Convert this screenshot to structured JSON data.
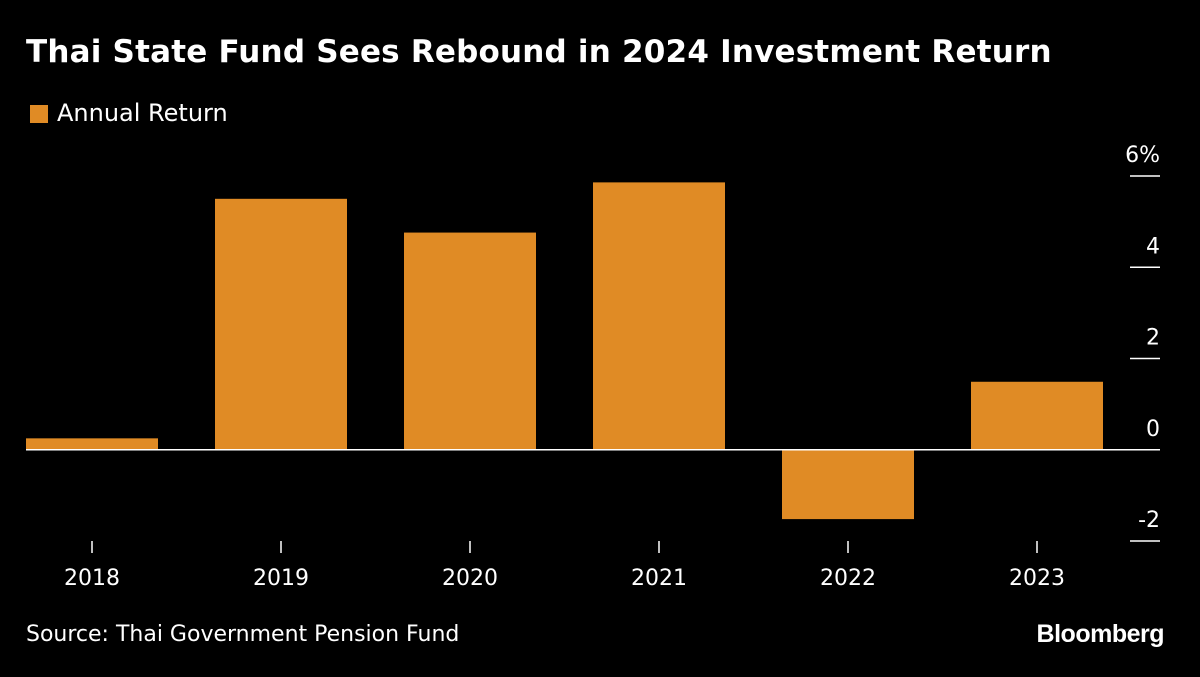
{
  "title": "Thai State Fund Sees Rebound in 2024 Investment Return",
  "source": "Source: Thai Government Pension Fund",
  "brand": "Bloomberg",
  "colors": {
    "background": "#000000",
    "bar": "#E08B25",
    "text": "#ffffff",
    "axis": "#ffffff"
  },
  "chart_data": {
    "type": "bar",
    "categories": [
      "2018",
      "2019",
      "2020",
      "2021",
      "2022",
      "2023"
    ],
    "series": [
      {
        "name": "Annual Return",
        "values": [
          0.25,
          5.5,
          4.76,
          5.86,
          -1.52,
          1.49
        ]
      }
    ],
    "yticks": [
      -2,
      0,
      2,
      4,
      6
    ],
    "ytick_labels": [
      "-2",
      "0",
      "2",
      "4",
      "6%"
    ],
    "ylim": [
      -2,
      6
    ],
    "xlabel": "",
    "ylabel": "",
    "legend": "top-left",
    "grid": false,
    "y_axis_side": "right"
  }
}
